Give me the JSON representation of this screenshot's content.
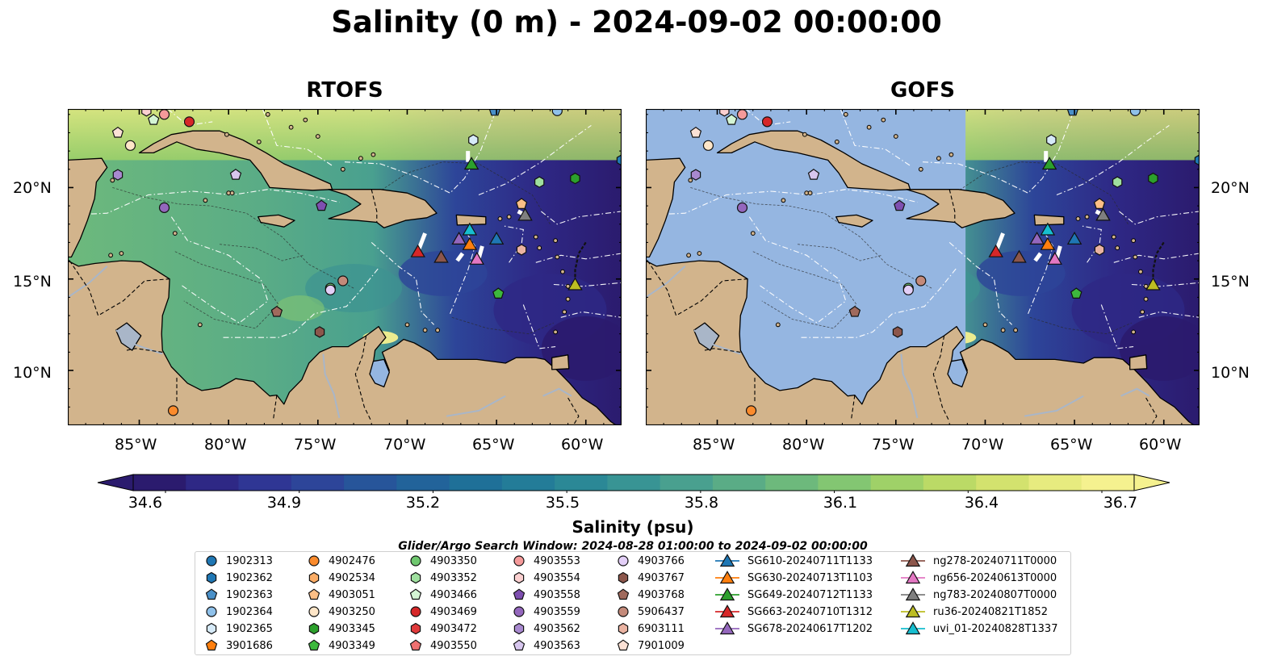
{
  "title": "Salinity (0 m) - 2024-09-02 00:00:00",
  "panels": [
    {
      "title": "RTOFS"
    },
    {
      "title": "GOFS"
    }
  ],
  "latitude_labels": [
    "20°N",
    "15°N",
    "10°N"
  ],
  "longitude_labels": [
    "85°W",
    "80°W",
    "75°W",
    "70°W",
    "65°W",
    "60°W"
  ],
  "map_extent": {
    "lon_min": -89,
    "lon_max": -58,
    "lat_min": 7,
    "lat_max": 24.3
  },
  "colorbar": {
    "title": "Salinity (psu)",
    "min": 34.6,
    "max": 36.7,
    "ticks": [
      "34.6",
      "34.9",
      "35.2",
      "35.5",
      "35.8",
      "36.1",
      "36.4",
      "36.7"
    ],
    "colors": [
      "#2b1b6e",
      "#2e2885",
      "#2f3694",
      "#2d4599",
      "#27559a",
      "#22639a",
      "#1f7098",
      "#237c98",
      "#2b8896",
      "#389494",
      "#49a08f",
      "#5aac86",
      "#6db97c",
      "#83c672",
      "#9fd168",
      "#bbda66",
      "#d3e26e",
      "#e7eb7f",
      "#f5f18f"
    ],
    "extend": "both"
  },
  "search_window": "Glider/Argo Search Window: 2024-08-28 01:00:00 to 2024-09-02 00:00:00",
  "legend": {
    "argo": [
      {
        "id": "1902313",
        "marker": "circle",
        "color": "#1f77b4"
      },
      {
        "id": "1902362",
        "marker": "hexagon",
        "color": "#1f77b4"
      },
      {
        "id": "1902363",
        "marker": "pentagon",
        "color": "#4a90c8"
      },
      {
        "id": "1902364",
        "marker": "circle",
        "color": "#8fc1ea"
      },
      {
        "id": "1902365",
        "marker": "hexagon",
        "color": "#d6eaf8"
      },
      {
        "id": "3901686",
        "marker": "pentagon",
        "color": "#ff7f0e"
      },
      {
        "id": "4902476",
        "marker": "circle",
        "color": "#fb8b2c"
      },
      {
        "id": "4902534",
        "marker": "hexagon",
        "color": "#fcad66"
      },
      {
        "id": "4903051",
        "marker": "pentagon",
        "color": "#fdbf86"
      },
      {
        "id": "4903250",
        "marker": "circle",
        "color": "#fee6c8"
      },
      {
        "id": "4903345",
        "marker": "hexagon",
        "color": "#2ca02c"
      },
      {
        "id": "4903349",
        "marker": "pentagon",
        "color": "#3db83d"
      },
      {
        "id": "4903350",
        "marker": "circle",
        "color": "#6fc86f"
      },
      {
        "id": "4903352",
        "marker": "hexagon",
        "color": "#9fe09f"
      },
      {
        "id": "4903466",
        "marker": "pentagon",
        "color": "#d4f5d4"
      },
      {
        "id": "4903469",
        "marker": "circle",
        "color": "#d62728"
      },
      {
        "id": "4903472",
        "marker": "hexagon",
        "color": "#e03a3b"
      },
      {
        "id": "4903550",
        "marker": "pentagon",
        "color": "#ef7070"
      },
      {
        "id": "4903553",
        "marker": "circle",
        "color": "#f59a9a"
      },
      {
        "id": "4903554",
        "marker": "hexagon",
        "color": "#fbd0d0"
      },
      {
        "id": "4903558",
        "marker": "pentagon",
        "color": "#7e4fb0"
      },
      {
        "id": "4903559",
        "marker": "circle",
        "color": "#9467bd"
      },
      {
        "id": "4903562",
        "marker": "hexagon",
        "color": "#a889cf"
      },
      {
        "id": "4903563",
        "marker": "pentagon",
        "color": "#d7c6ee"
      },
      {
        "id": "4903766",
        "marker": "circle",
        "color": "#e3cff7"
      },
      {
        "id": "4903767",
        "marker": "hexagon",
        "color": "#8c564b"
      },
      {
        "id": "4903768",
        "marker": "pentagon",
        "color": "#a06a5d"
      },
      {
        "id": "5906437",
        "marker": "circle",
        "color": "#c48a7a"
      },
      {
        "id": "6903111",
        "marker": "hexagon",
        "color": "#eab3a2"
      },
      {
        "id": "7901009",
        "marker": "pentagon",
        "color": "#fbe1d5"
      }
    ],
    "gliders": [
      {
        "id": "SG610-20240711T1133",
        "color": "#1f77b4"
      },
      {
        "id": "SG630-20240713T1103",
        "color": "#ff7f0e"
      },
      {
        "id": "SG649-20240712T1133",
        "color": "#2ca02c"
      },
      {
        "id": "SG663-20240710T1312",
        "color": "#d62728"
      },
      {
        "id": "SG678-20240617T1202",
        "color": "#9467bd"
      },
      {
        "id": "ng278-20240711T0000",
        "color": "#8c564b"
      },
      {
        "id": "ng656-20240613T0000",
        "color": "#e377c2"
      },
      {
        "id": "ng783-20240807T0000",
        "color": "#7f7f7f"
      },
      {
        "id": "ru36-20240821T1852",
        "color": "#bcbd22"
      },
      {
        "id": "uvi_01-20240828T1337",
        "color": "#17becf"
      }
    ]
  },
  "map_markers": [
    {
      "lon": -84.6,
      "lat": 24.2,
      "marker": "hexagon",
      "color": "#fbd0d0"
    },
    {
      "lon": -86.2,
      "lat": 23.0,
      "marker": "pentagon",
      "color": "#fbe1d5"
    },
    {
      "lon": -84.2,
      "lat": 23.7,
      "marker": "pentagon",
      "color": "#d4f5d4"
    },
    {
      "lon": -83.6,
      "lat": 24.0,
      "marker": "circle",
      "color": "#f59a9a"
    },
    {
      "lon": -82.2,
      "lat": 23.6,
      "marker": "circle",
      "color": "#d62728"
    },
    {
      "lon": -85.5,
      "lat": 22.3,
      "marker": "circle",
      "color": "#fee6c8"
    },
    {
      "lon": -86.2,
      "lat": 20.7,
      "marker": "hexagon",
      "color": "#a889cf"
    },
    {
      "lon": -79.6,
      "lat": 20.7,
      "marker": "pentagon",
      "color": "#d7c6ee"
    },
    {
      "lon": -83.6,
      "lat": 18.9,
      "marker": "circle",
      "color": "#9467bd"
    },
    {
      "lon": -74.8,
      "lat": 19.0,
      "marker": "pentagon",
      "color": "#7e4fb0"
    },
    {
      "lon": -65.1,
      "lat": 24.2,
      "marker": "pentagon",
      "color": "#4a90c8"
    },
    {
      "lon": -61.6,
      "lat": 24.2,
      "marker": "circle",
      "color": "#8fc1ea"
    },
    {
      "lon": -58.0,
      "lat": 21.5,
      "marker": "hexagon",
      "color": "#1f77b4"
    },
    {
      "lon": -66.3,
      "lat": 22.6,
      "marker": "hexagon",
      "color": "#d6eaf8"
    },
    {
      "lon": -62.6,
      "lat": 20.3,
      "marker": "hexagon",
      "color": "#9fe09f"
    },
    {
      "lon": -60.6,
      "lat": 20.5,
      "marker": "hexagon",
      "color": "#2ca02c"
    },
    {
      "lon": -63.6,
      "lat": 19.1,
      "marker": "pentagon",
      "color": "#fdbf86"
    },
    {
      "lon": -63.6,
      "lat": 16.6,
      "marker": "hexagon",
      "color": "#eab3a2"
    },
    {
      "lon": -64.9,
      "lat": 14.2,
      "marker": "pentagon",
      "color": "#3db83d"
    },
    {
      "lon": -73.6,
      "lat": 14.9,
      "marker": "circle",
      "color": "#c48a7a"
    },
    {
      "lon": -74.3,
      "lat": 14.5,
      "marker": "circle",
      "color": "#6fc86f"
    },
    {
      "lon": -74.3,
      "lat": 14.4,
      "marker": "circle",
      "color": "#e3cff7"
    },
    {
      "lon": -77.3,
      "lat": 13.2,
      "marker": "pentagon",
      "color": "#a06a5d"
    },
    {
      "lon": -74.9,
      "lat": 12.1,
      "marker": "hexagon",
      "color": "#8c564b"
    },
    {
      "lon": -83.1,
      "lat": 7.8,
      "marker": "circle",
      "color": "#fb8b2c"
    }
  ],
  "glider_markers": [
    {
      "lon": -66.4,
      "lat": 21.3,
      "color": "#2ca02c"
    },
    {
      "lon": -69.4,
      "lat": 16.5,
      "color": "#d62728"
    },
    {
      "lon": -68.1,
      "lat": 16.2,
      "color": "#8c564b"
    },
    {
      "lon": -67.1,
      "lat": 17.2,
      "color": "#9467bd"
    },
    {
      "lon": -66.5,
      "lat": 16.9,
      "color": "#ff7f0e"
    },
    {
      "lon": -66.5,
      "lat": 17.7,
      "color": "#17becf"
    },
    {
      "lon": -66.1,
      "lat": 16.1,
      "color": "#e377c2"
    },
    {
      "lon": -65.0,
      "lat": 17.2,
      "color": "#1f77b4"
    },
    {
      "lon": -63.4,
      "lat": 18.5,
      "color": "#7f7f7f"
    },
    {
      "lon": -60.6,
      "lat": 14.7,
      "color": "#bcbd22"
    }
  ]
}
